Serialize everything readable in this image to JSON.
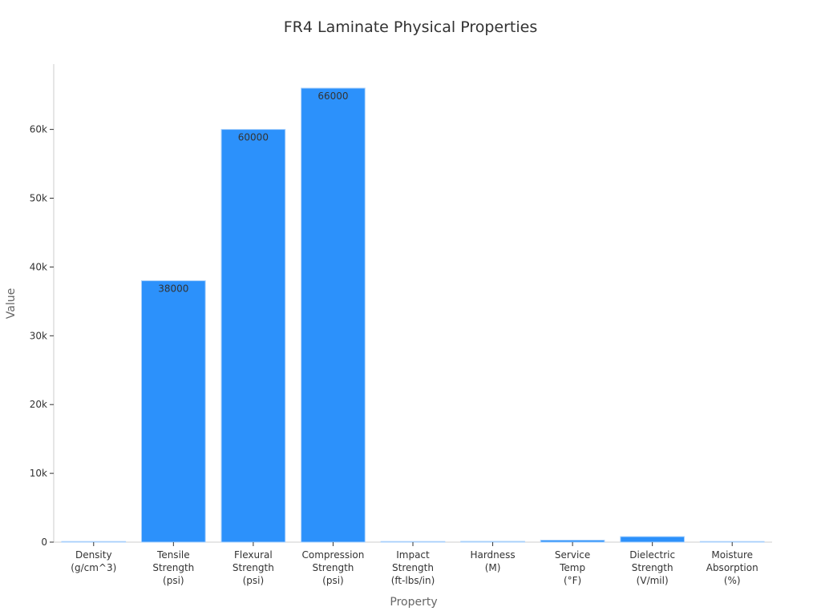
{
  "chart_data": {
    "type": "bar",
    "title": "FR4 Laminate Physical Properties",
    "xlabel": "Property",
    "ylabel": "Value",
    "categories": [
      [
        "Density",
        "(g/cm^3)"
      ],
      [
        "Tensile",
        "Strength",
        "(psi)"
      ],
      [
        "Flexural",
        "Strength",
        "(psi)"
      ],
      [
        "Compression",
        "Strength",
        "(psi)"
      ],
      [
        "Impact",
        "Strength",
        "(ft-lbs/in)"
      ],
      [
        "Hardness",
        "(M)"
      ],
      [
        "Service",
        "Temp",
        "(°F)"
      ],
      [
        "Dielectric",
        "Strength",
        "(V/mil)"
      ],
      [
        "Moisture",
        "Absorption",
        "(%)"
      ]
    ],
    "values": [
      1.85,
      38000,
      60000,
      66000,
      6,
      110,
      284,
      800,
      0.1
    ],
    "data_labels": [
      "",
      "38000",
      "60000",
      "66000",
      "",
      "",
      "",
      "",
      ""
    ],
    "ylim": [
      0,
      69500
    ],
    "yticks": [
      0,
      10000,
      20000,
      30000,
      40000,
      50000,
      60000
    ],
    "ytick_labels": [
      "0",
      "10k",
      "20k",
      "30k",
      "40k",
      "50k",
      "60k"
    ],
    "bar_color": "#2c91fb",
    "grid": false,
    "legend": "none"
  }
}
